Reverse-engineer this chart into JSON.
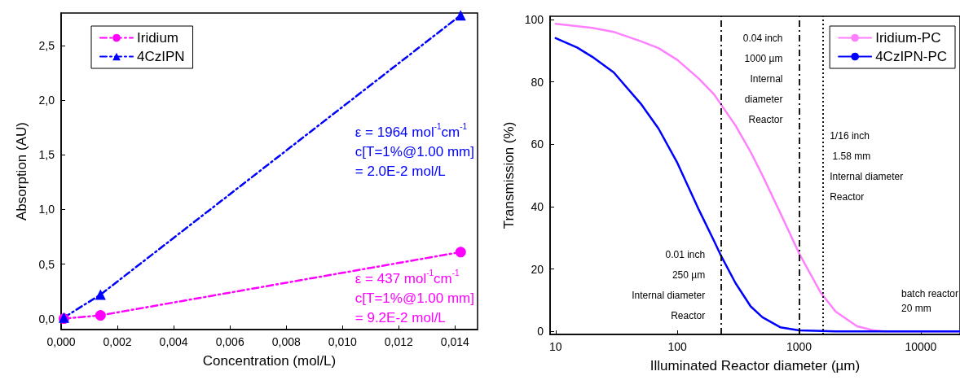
{
  "chart_data": [
    {
      "type": "line",
      "xlabel": "Concentration (mol/L)",
      "ylabel": "Absorption (AU)",
      "xlim": [
        0,
        0.0148
      ],
      "ylim": [
        -0.1,
        2.8
      ],
      "xticks": [
        {
          "value": 0,
          "label": "0,000"
        },
        {
          "value": 0.002,
          "label": "0,002"
        },
        {
          "value": 0.004,
          "label": "0,004"
        },
        {
          "value": 0.006,
          "label": "0,006"
        },
        {
          "value": 0.008,
          "label": "0,008"
        },
        {
          "value": 0.01,
          "label": "0,010"
        },
        {
          "value": 0.012,
          "label": "0,012"
        },
        {
          "value": 0.014,
          "label": "0,014"
        }
      ],
      "yticks": [
        {
          "value": 0,
          "label": "0,0"
        },
        {
          "value": 0.5,
          "label": "0,5"
        },
        {
          "value": 1,
          "label": "1,0"
        },
        {
          "value": 1.5,
          "label": "1,5"
        },
        {
          "value": 2,
          "label": "2,0"
        },
        {
          "value": 2.5,
          "label": "2,5"
        }
      ],
      "series": [
        {
          "name": "Iridium",
          "color": "#ff00ff",
          "marker": "circle",
          "line_style": "dashed",
          "x": [
            0.0001,
            0.0014,
            0.0142
          ],
          "values": [
            0.0,
            0.03,
            0.61
          ]
        },
        {
          "name": "4CzIPN",
          "color": "#0000ff",
          "marker": "triangle",
          "line_style": "dashed",
          "x": [
            0.0001,
            0.0014,
            0.0142
          ],
          "values": [
            0.01,
            0.22,
            2.78
          ]
        }
      ],
      "annotations": [
        "ε = 437 mol$^{-1}$cm$^{-1}$\nc[T=1%@1.00 mm]\n= 9.2E-2 mol/L",
        "ε = 1964 mol$^{-1}$cm$^{-1}$\nc[T=1%@1.00 mm]\n= 2.0E-2 mol/L"
      ],
      "grid": false,
      "legend": "top left"
    },
    {
      "type": "line",
      "xlabel": "Illuminated Reactor diameter (µm)",
      "ylabel": "Transmission (%)",
      "log": "x",
      "xlim": [
        9,
        21000
      ],
      "ylim": [
        -1,
        101
      ],
      "xticks": [
        10,
        100,
        1000,
        10000
      ],
      "yticks": [
        0,
        20,
        40,
        60,
        80,
        100
      ],
      "marker": "none",
      "line_style": "solid",
      "series": [
        {
          "name": "Iridium-PC",
          "color": "#ff80ff",
          "x": [
            10,
            20,
            30,
            50,
            70,
            100,
            150,
            200,
            300,
            400,
            500,
            700,
            1000,
            1500,
            2000,
            3000,
            4000,
            5000,
            10000,
            21000
          ],
          "values": [
            98.6,
            97.3,
            96,
            93,
            90.8,
            87,
            81,
            76,
            66,
            57.5,
            50,
            38,
            25,
            12.5,
            6.3,
            1.6,
            0.4,
            0,
            0,
            0
          ]
        },
        {
          "name": "4CzIPN-PC",
          "color": "#0000ff",
          "x": [
            10,
            15,
            20,
            30,
            50,
            70,
            100,
            150,
            200,
            230,
            300,
            400,
            500,
            700,
            1000,
            2000,
            5000,
            21000
          ],
          "values": [
            94,
            91,
            88,
            83,
            73,
            65,
            54,
            39,
            29,
            24,
            15.5,
            8,
            4.5,
            1.3,
            0.3,
            0,
            0,
            0
          ]
        }
      ],
      "ref_lines": [
        {
          "axis": "x",
          "value": 230,
          "label": "0.01 inch\n250 µm\nInternal diameter\nReactor",
          "color": "#000000",
          "line_style": "dashed"
        },
        {
          "axis": "x",
          "value": 1000,
          "label": "0.04 inch\n1000 µm\nInternal\ndiameter\nReactor",
          "color": "#000000",
          "line_style": "dashed"
        },
        {
          "axis": "x",
          "value": 1580,
          "label": "1/16 inch\n 1.58 mm\nInternal diameter\nReactor",
          "color": "#000000",
          "line_style": "dotted"
        }
      ],
      "annotations": [
        "batch reactor\n20 mm"
      ],
      "grid": false,
      "legend": "top right"
    }
  ]
}
